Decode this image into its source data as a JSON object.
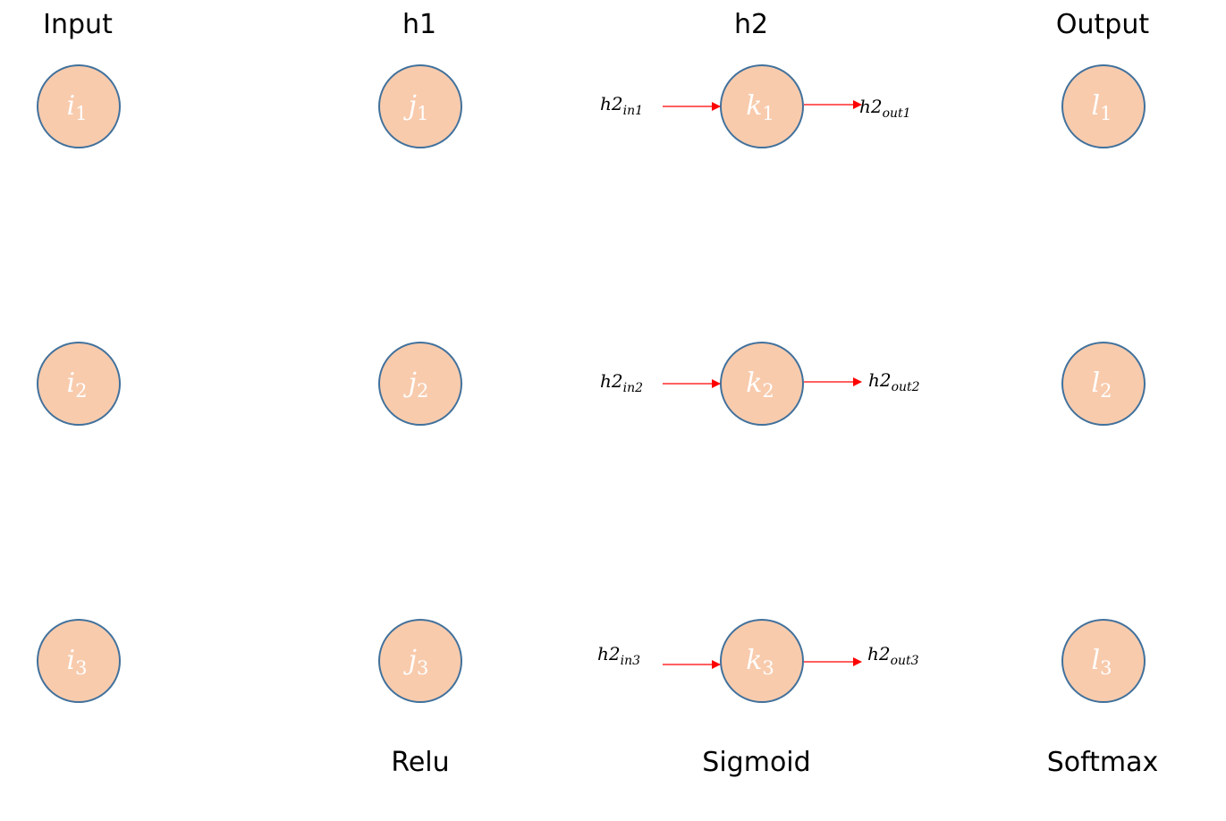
{
  "layers": [
    {
      "title": "Input",
      "activation": "",
      "nodes": [
        {
          "base": "i",
          "sub": "1"
        },
        {
          "base": "i",
          "sub": "2"
        },
        {
          "base": "i",
          "sub": "3"
        }
      ]
    },
    {
      "title": "h1",
      "activation": "Relu",
      "nodes": [
        {
          "base": "j",
          "sub": "1"
        },
        {
          "base": "j",
          "sub": "2"
        },
        {
          "base": "j",
          "sub": "3"
        }
      ]
    },
    {
      "title": "h2",
      "activation": "Sigmoid",
      "nodes": [
        {
          "base": "k",
          "sub": "1"
        },
        {
          "base": "k",
          "sub": "2"
        },
        {
          "base": "k",
          "sub": "3"
        }
      ]
    },
    {
      "title": "Output",
      "activation": "Softmax",
      "nodes": [
        {
          "base": "l",
          "sub": "1"
        },
        {
          "base": "l",
          "sub": "2"
        },
        {
          "base": "l",
          "sub": "3"
        }
      ]
    }
  ],
  "h2_io": [
    {
      "in_base": "h2",
      "in_sub": "in1",
      "out_base": "h2",
      "out_sub": "out1"
    },
    {
      "in_base": "h2",
      "in_sub": "in2",
      "out_base": "h2",
      "out_sub": "out2"
    },
    {
      "in_base": "h2",
      "in_sub": "in3",
      "out_base": "h2",
      "out_sub": "out3"
    }
  ],
  "colors": {
    "node_fill": "#f8cbad",
    "node_stroke": "#41719c",
    "arrow": "#ff0000",
    "node_text": "#ffffff"
  }
}
